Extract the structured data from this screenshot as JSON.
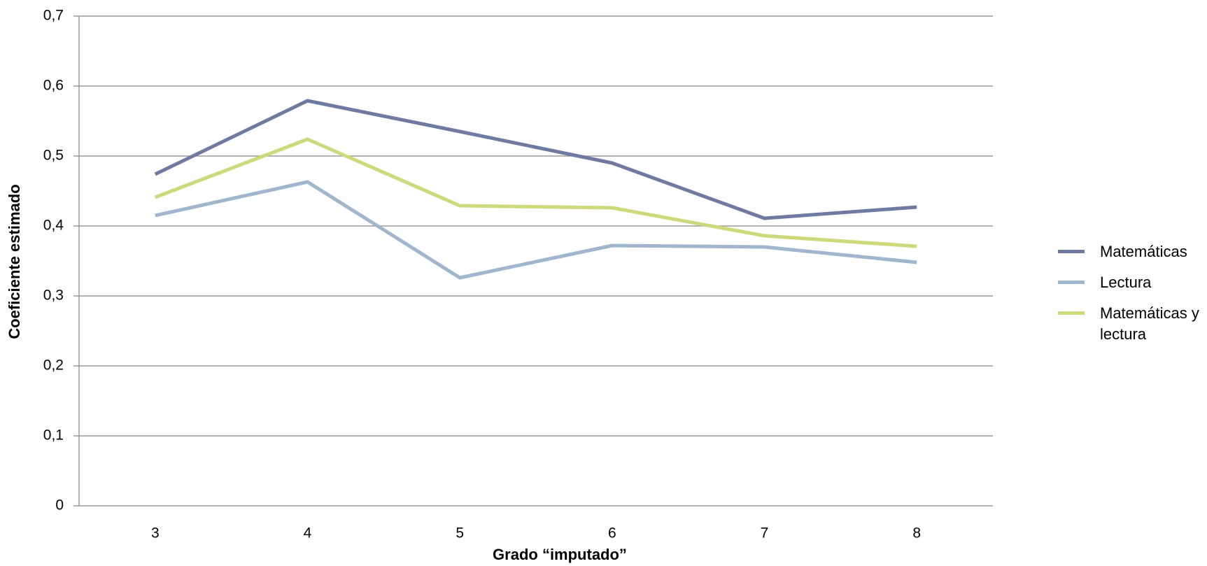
{
  "chart_data": {
    "type": "line",
    "x_label": "Grado “imputado”",
    "y_label": "Coeficiente estimado",
    "categories": [
      "3",
      "4",
      "5",
      "6",
      "7",
      "8"
    ],
    "series": [
      {
        "name": "Matemáticas",
        "color": "#6f7aa0",
        "values": [
          0.474,
          0.579,
          0.535,
          0.49,
          0.411,
          0.427
        ]
      },
      {
        "name": "Lectura",
        "color": "#9fb6cc",
        "values": [
          0.415,
          0.463,
          0.326,
          0.372,
          0.37,
          0.348
        ]
      },
      {
        "name": "Matemáticas y lectura",
        "color": "#cdd97a",
        "values": [
          0.441,
          0.524,
          0.429,
          0.426,
          0.386,
          0.371
        ]
      }
    ],
    "ylim": [
      0,
      0.7
    ],
    "yticks": [
      0,
      {
        "value": 0.1,
        "label": "0,1"
      },
      {
        "value": 0.2,
        "label": "0,2"
      },
      {
        "value": 0.3,
        "label": "0,3"
      },
      {
        "value": 0.4,
        "label": "0,4"
      },
      {
        "value": 0.5,
        "label": "0,5"
      },
      {
        "value": 0.6,
        "label": "0,6"
      },
      {
        "value": 0.7,
        "label": "0,7"
      }
    ],
    "grid": true,
    "legend": "right"
  }
}
